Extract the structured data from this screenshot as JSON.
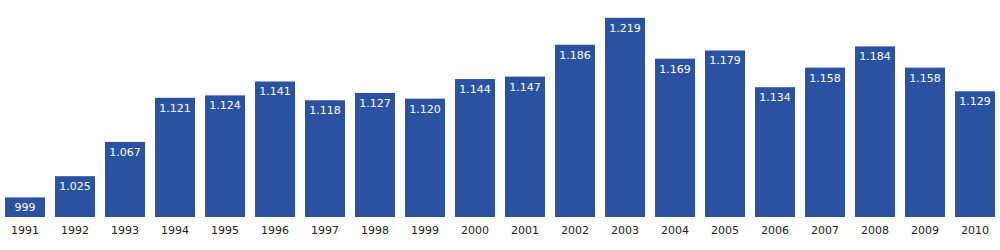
{
  "chart_data": {
    "type": "bar",
    "categories": [
      "1991",
      "1992",
      "1993",
      "1994",
      "1995",
      "1996",
      "1997",
      "1998",
      "1999",
      "2000",
      "2001",
      "2002",
      "2003",
      "2004",
      "2005",
      "2006",
      "2007",
      "2008",
      "2009",
      "2010"
    ],
    "values": [
      999,
      1025,
      1067,
      1121,
      1124,
      1141,
      1118,
      1127,
      1120,
      1144,
      1147,
      1186,
      1219,
      1169,
      1179,
      1134,
      1158,
      1184,
      1158,
      1129
    ],
    "value_labels": [
      "999",
      "1.025",
      "1.067",
      "1.121",
      "1.124",
      "1.141",
      "1.118",
      "1.127",
      "1.120",
      "1.144",
      "1.147",
      "1.186",
      "1.219",
      "1.169",
      "1.179",
      "1.134",
      "1.158",
      "1.184",
      "1.158",
      "1.129"
    ],
    "color": "#2b52a0",
    "ylim": [
      975,
      1220
    ],
    "data_labels": true,
    "tick_labels": "x",
    "grid": false
  }
}
